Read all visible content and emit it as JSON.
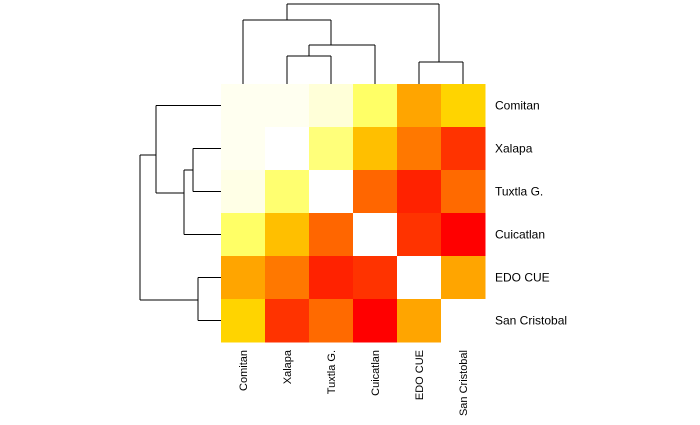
{
  "chart_data": {
    "type": "heatmap",
    "title": "",
    "xlabel": "",
    "ylabel": "",
    "x_labels": [
      "Comitan",
      "Xalapa",
      "Tuxtla G.",
      "Cuicatlan",
      "EDO CUE",
      "San Cristobal"
    ],
    "y_labels": [
      "Comitan",
      "Xalapa",
      "Tuxtla G.",
      "Cuicatlan",
      "EDO CUE",
      "San Cristobal"
    ],
    "colors": [
      [
        "#fffff0",
        "#fffff0",
        "#ffffd8",
        "#ffff66",
        "#ffa500",
        "#ffd400"
      ],
      [
        "#fffff0",
        "#ffffff",
        "#ffff7a",
        "#ffbf00",
        "#ff7800",
        "#ff3300"
      ],
      [
        "#ffffe6",
        "#ffff70",
        "#ffffff",
        "#ff6600",
        "#ff2200",
        "#ff6a00"
      ],
      [
        "#ffff66",
        "#ffbf00",
        "#ff6600",
        "#ffffff",
        "#ff3300",
        "#ff0000"
      ],
      [
        "#ffa500",
        "#ff7800",
        "#ff2200",
        "#ff3300",
        "#ffffff",
        "#ffa500"
      ],
      [
        "#ffd400",
        "#ff3300",
        "#ff6a00",
        "#ff0000",
        "#ffa500",
        "#ffffff"
      ]
    ],
    "row_dendrogram": "((Comitan,((Xalapa,Tuxtla G.),Cuicatlan)),(EDO CUE,San Cristobal))",
    "col_dendrogram": "((Comitan,((Xalapa,Tuxtla G.),Cuicatlan)),(EDO CUE,San Cristobal))",
    "legend": "none",
    "grid": false
  }
}
